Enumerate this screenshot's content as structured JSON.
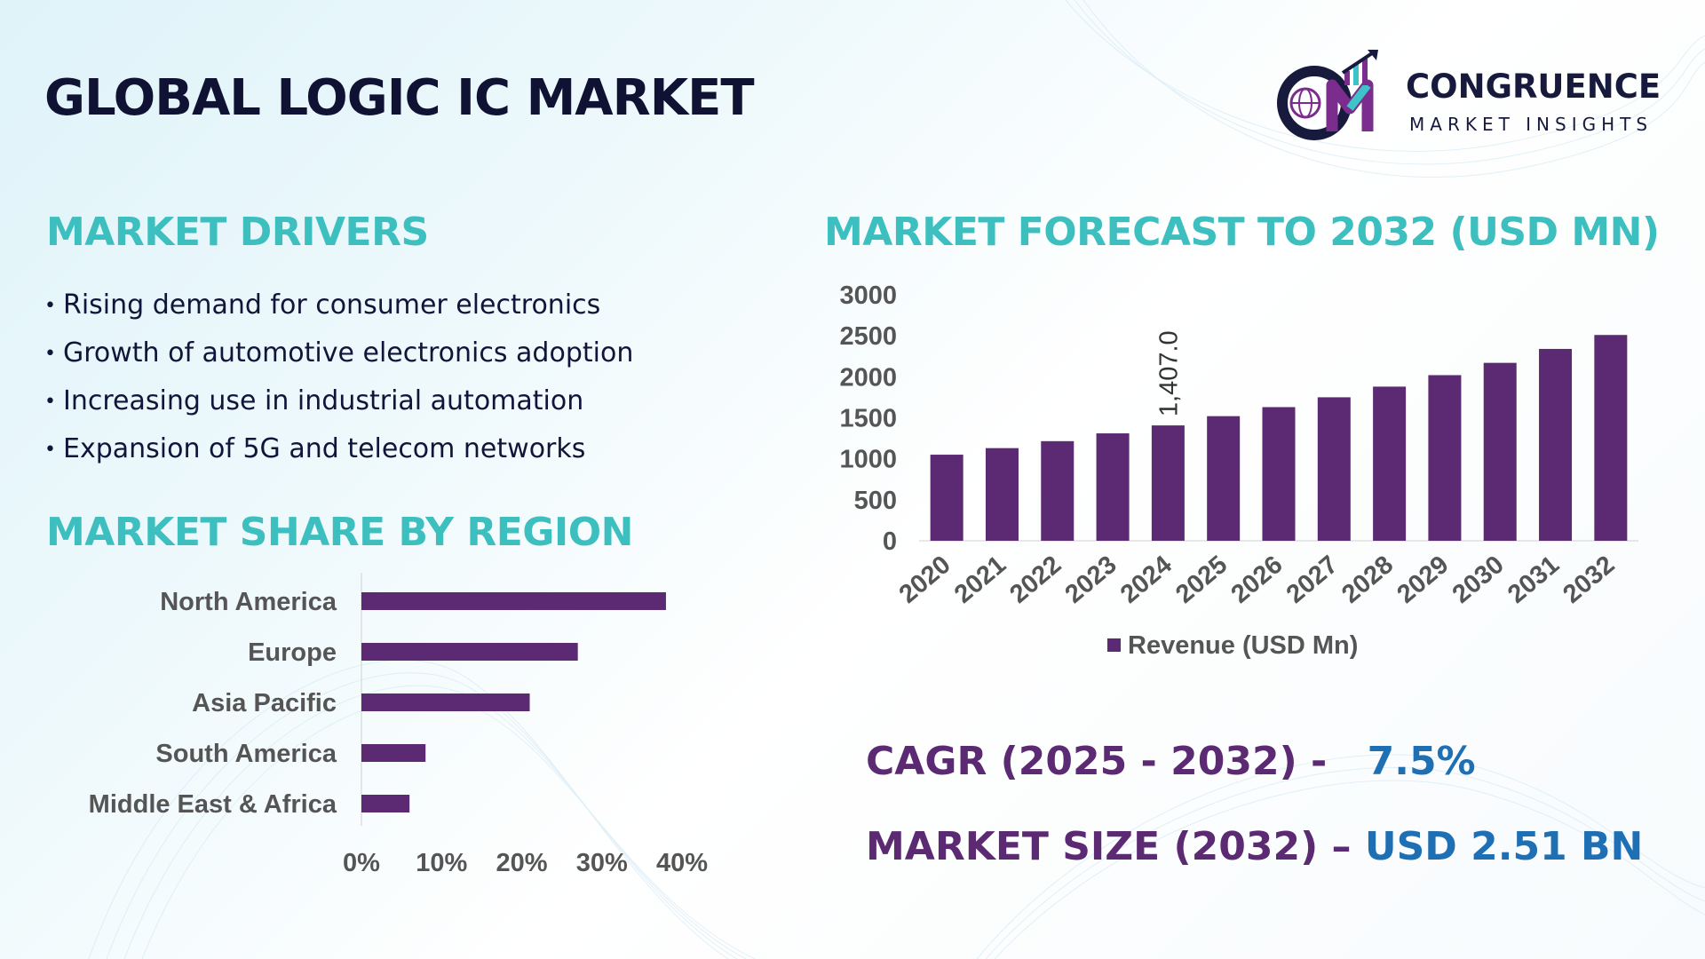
{
  "title": "GLOBAL LOGIC IC MARKET",
  "logo": {
    "name": "CONGRUENCE",
    "subtitle": "MARKET INSIGHTS",
    "colors": {
      "dark": "#171a3c",
      "purple": "#7a2d8c",
      "teal": "#3ec3c9"
    }
  },
  "drivers": {
    "heading": "MARKET DRIVERS",
    "items": [
      "Rising demand for consumer electronics",
      "Growth of automotive electronics adoption",
      "Increasing use in industrial automation",
      "Expansion of 5G and telecom networks"
    ]
  },
  "region": {
    "heading": "MARKET SHARE BY REGION"
  },
  "forecast": {
    "heading": "MARKET FORECAST TO 2032 (USD MN)"
  },
  "stats": {
    "cagr_label": "CAGR (2025 - 2032) -",
    "cagr_value": "7.5%",
    "size_label": "MARKET SIZE (2032) –",
    "size_value": "USD 2.51 BN"
  },
  "colors": {
    "bar": "#5b2a73",
    "heading": "#3dbfbf",
    "title": "#0f1233",
    "value": "#1e6fb3"
  },
  "chart_data": [
    {
      "type": "bar",
      "orientation": "horizontal",
      "categories": [
        "North America",
        "Europe",
        "Asia Pacific",
        "South America",
        "Middle East & Africa"
      ],
      "values": [
        38,
        27,
        21,
        8,
        6
      ],
      "xlim": [
        0,
        40
      ],
      "ticks": [
        "0%",
        "10%",
        "20%",
        "30%",
        "40%"
      ],
      "grid": false
    },
    {
      "type": "bar",
      "categories": [
        "2020",
        "2021",
        "2022",
        "2023",
        "2024",
        "2025",
        "2026",
        "2027",
        "2028",
        "2029",
        "2030",
        "2031",
        "2032"
      ],
      "series": [
        {
          "name": "Revenue (USD Mn)",
          "values": [
            1050,
            1130,
            1215,
            1310,
            1407,
            1520,
            1630,
            1750,
            1880,
            2020,
            2170,
            2340,
            2510
          ]
        }
      ],
      "data_labels": [
        {
          "index": 4,
          "text": "1,407.0"
        }
      ],
      "ylim": [
        0,
        3000
      ],
      "yticks": [
        "0",
        "500",
        "1000",
        "1500",
        "2000",
        "2500",
        "3000"
      ],
      "legend": "bottom",
      "grid": false
    }
  ]
}
